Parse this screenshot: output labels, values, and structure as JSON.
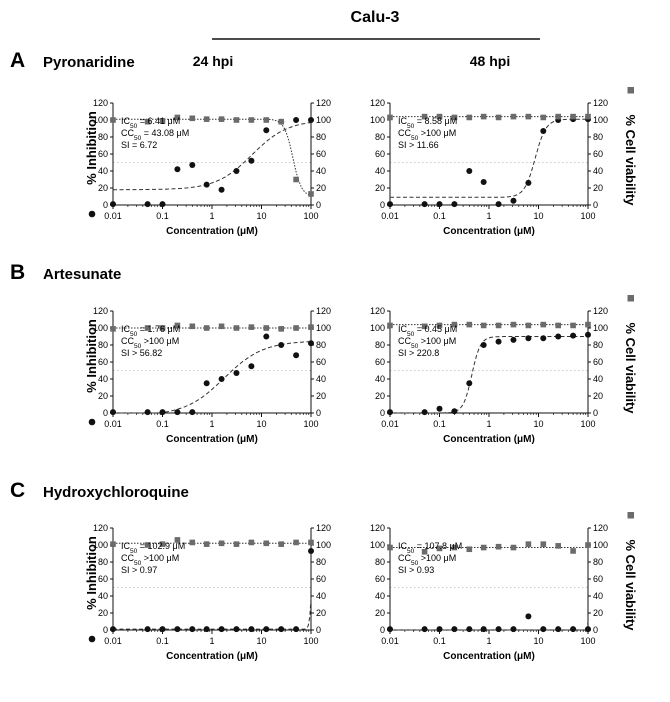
{
  "figure": {
    "title": "Calu-3",
    "columns": [
      "24 hpi",
      "48 hpi"
    ],
    "left_axis_label": "% Inhibition",
    "right_axis_label": "% Cell viability",
    "x_axis_label": "Concentration (μM)",
    "inhibition_marker": "filled-circle",
    "viability_marker": "filled-square-grey",
    "colors": {
      "inhibition": "#111111",
      "viability": "#6b6b6b",
      "fit": "#333333",
      "reference": "#bbbbbb"
    }
  },
  "rows": [
    {
      "letter": "A",
      "drug": "Pyronaridine"
    },
    {
      "letter": "B",
      "drug": "Artesunate"
    },
    {
      "letter": "C",
      "drug": "Hydroxychloroquine"
    }
  ],
  "chart_data": [
    {
      "type": "scatter",
      "panel": "A",
      "drug": "Pyronaridine",
      "time": "24 hpi",
      "x_scale": "log",
      "xlim": [
        0.01,
        100
      ],
      "ylim": [
        0,
        120
      ],
      "y2lim": [
        0,
        120
      ],
      "x_ticks": [
        "0.01",
        "0.1",
        "1",
        "10",
        "100"
      ],
      "y_ticks": [
        "0",
        "20",
        "40",
        "60",
        "80",
        "100",
        "120"
      ],
      "xlabel": "Concentration (μM)",
      "ylabel": "% Inhibition",
      "y2label": "% Cell viability",
      "reference_line": 50,
      "annotations": [
        {
          "prefix": "IC",
          "sub": "50",
          "text": " = 6.41 μM"
        },
        {
          "prefix": "CC",
          "sub": "50",
          "text": " = 43.08 μM"
        },
        {
          "prefix": "SI",
          "sub": "",
          "text": " = 6.72"
        }
      ],
      "series": [
        {
          "kind": "inhibition",
          "x": [
            0.01,
            0.05,
            0.1,
            0.2,
            0.4,
            0.78,
            1.56,
            3.12,
            6.25,
            12.5,
            25,
            50,
            100
          ],
          "y": [
            1,
            1,
            1,
            42,
            47,
            24,
            18,
            40,
            52,
            88,
            98,
            100,
            100
          ]
        },
        {
          "kind": "viability",
          "x": [
            0.01,
            0.05,
            0.1,
            0.2,
            0.4,
            0.78,
            1.56,
            3.12,
            6.25,
            12.5,
            25,
            50,
            100
          ],
          "y": [
            100,
            98,
            99,
            103,
            102,
            101,
            101,
            100,
            100,
            100,
            98,
            30,
            13
          ]
        }
      ],
      "fits": [
        {
          "kind": "inhibition",
          "bottom": 18,
          "top": 100,
          "ec50": 6.41,
          "hill": 1.2
        },
        {
          "kind": "viability",
          "bottom": 10,
          "top": 101,
          "ec50": 43.08,
          "hill": -5
        }
      ]
    },
    {
      "type": "scatter",
      "panel": "A",
      "drug": "Pyronaridine",
      "time": "48 hpi",
      "x_scale": "log",
      "xlim": [
        0.01,
        100
      ],
      "ylim": [
        0,
        120
      ],
      "y2lim": [
        0,
        120
      ],
      "x_ticks": [
        "0.01",
        "0.1",
        "1",
        "10",
        "100"
      ],
      "y_ticks": [
        "0",
        "20",
        "40",
        "60",
        "80",
        "100",
        "120"
      ],
      "xlabel": "Concentration (μM)",
      "ylabel": "% Inhibition",
      "y2label": "% Cell viability",
      "reference_line": 50,
      "annotations": [
        {
          "prefix": "IC",
          "sub": "50",
          "text": " = 8.58 μM"
        },
        {
          "prefix": "CC",
          "sub": "50",
          "text": " >100 μM"
        },
        {
          "prefix": "SI",
          "sub": "",
          "text": " > 11.66"
        }
      ],
      "series": [
        {
          "kind": "inhibition",
          "x": [
            0.01,
            0.05,
            0.1,
            0.2,
            0.4,
            0.78,
            1.56,
            3.12,
            6.25,
            12.5,
            25,
            50,
            100
          ],
          "y": [
            1,
            1,
            1,
            1,
            40,
            27,
            1,
            5,
            26,
            87,
            100,
            101,
            101
          ]
        },
        {
          "kind": "viability",
          "x": [
            0.01,
            0.05,
            0.1,
            0.2,
            0.4,
            0.78,
            1.56,
            3.12,
            6.25,
            12.5,
            25,
            50,
            100
          ],
          "y": [
            103,
            104,
            104,
            103,
            103,
            104,
            103,
            104,
            104,
            103,
            104,
            104,
            104
          ]
        }
      ],
      "fits": [
        {
          "kind": "inhibition",
          "bottom": 9,
          "top": 101,
          "ec50": 8.58,
          "hill": 4
        },
        {
          "kind": "viability",
          "bottom": 104,
          "top": 104,
          "ec50": 50,
          "hill": 1
        }
      ]
    },
    {
      "type": "scatter",
      "panel": "B",
      "drug": "Artesunate",
      "time": "24 hpi",
      "x_scale": "log",
      "xlim": [
        0.01,
        100
      ],
      "ylim": [
        0,
        120
      ],
      "y2lim": [
        0,
        120
      ],
      "x_ticks": [
        "0.01",
        "0.1",
        "1",
        "10",
        "100"
      ],
      "y_ticks": [
        "0",
        "20",
        "40",
        "60",
        "80",
        "100",
        "120"
      ],
      "xlabel": "Concentration (μM)",
      "ylabel": "% Inhibition",
      "y2label": "% Cell viability",
      "reference_line": 50,
      "annotations": [
        {
          "prefix": "IC",
          "sub": "50",
          "text": " = 1.76 μM"
        },
        {
          "prefix": "CC",
          "sub": "50",
          "text": " >100 μM"
        },
        {
          "prefix": "SI",
          "sub": "",
          "text": " > 56.82"
        }
      ],
      "series": [
        {
          "kind": "inhibition",
          "x": [
            0.01,
            0.05,
            0.1,
            0.2,
            0.4,
            0.78,
            1.56,
            3.12,
            6.25,
            12.5,
            25,
            50,
            100
          ],
          "y": [
            1,
            1,
            1,
            1,
            1,
            35,
            40,
            47,
            55,
            90,
            80,
            68,
            82
          ]
        },
        {
          "kind": "viability",
          "x": [
            0.01,
            0.05,
            0.1,
            0.2,
            0.4,
            0.78,
            1.56,
            3.12,
            6.25,
            12.5,
            25,
            50,
            100
          ],
          "y": [
            99,
            100,
            100,
            103,
            102,
            100,
            102,
            100,
            101,
            100,
            99,
            100,
            101
          ]
        }
      ],
      "fits": [
        {
          "kind": "inhibition",
          "bottom": -3,
          "top": 85,
          "ec50": 1.76,
          "hill": 1.1
        },
        {
          "kind": "viability",
          "bottom": 100,
          "top": 100,
          "ec50": 50,
          "hill": 1
        }
      ]
    },
    {
      "type": "scatter",
      "panel": "B",
      "drug": "Artesunate",
      "time": "48 hpi",
      "x_scale": "log",
      "xlim": [
        0.01,
        100
      ],
      "ylim": [
        0,
        120
      ],
      "y2lim": [
        0,
        120
      ],
      "x_ticks": [
        "0.01",
        "0.1",
        "1",
        "10",
        "100"
      ],
      "y_ticks": [
        "0",
        "20",
        "40",
        "60",
        "80",
        "100",
        "120"
      ],
      "xlabel": "Concentration (μM)",
      "ylabel": "% Inhibition",
      "y2label": "% Cell viability",
      "reference_line": 50,
      "annotations": [
        {
          "prefix": "IC",
          "sub": "50",
          "text": " = 0.45 μM"
        },
        {
          "prefix": "CC",
          "sub": "50",
          "text": " >100 μM"
        },
        {
          "prefix": "SI",
          "sub": "",
          "text": " > 220.8"
        }
      ],
      "series": [
        {
          "kind": "inhibition",
          "x": [
            0.01,
            0.05,
            0.1,
            0.2,
            0.4,
            0.78,
            1.56,
            3.12,
            6.25,
            12.5,
            25,
            50,
            100
          ],
          "y": [
            1,
            1,
            5,
            2,
            35,
            80,
            84,
            86,
            88,
            88,
            90,
            91,
            92
          ]
        },
        {
          "kind": "viability",
          "x": [
            0.01,
            0.05,
            0.1,
            0.2,
            0.4,
            0.78,
            1.56,
            3.12,
            6.25,
            12.5,
            25,
            50,
            100
          ],
          "y": [
            103,
            102,
            103,
            104,
            104,
            103,
            103,
            104,
            103,
            104,
            103,
            103,
            104
          ]
        }
      ],
      "fits": [
        {
          "kind": "inhibition",
          "bottom": 0,
          "top": 90,
          "ec50": 0.45,
          "hill": 5
        },
        {
          "kind": "viability",
          "bottom": 104,
          "top": 104,
          "ec50": 50,
          "hill": 1
        }
      ]
    },
    {
      "type": "scatter",
      "panel": "C",
      "drug": "Hydroxychloroquine",
      "time": "24 hpi",
      "x_scale": "log",
      "xlim": [
        0.01,
        100
      ],
      "ylim": [
        0,
        120
      ],
      "y2lim": [
        0,
        120
      ],
      "x_ticks": [
        "0.01",
        "0.1",
        "1",
        "10",
        "100"
      ],
      "y_ticks": [
        "0",
        "20",
        "40",
        "60",
        "80",
        "100",
        "120"
      ],
      "xlabel": "Concentration (μM)",
      "ylabel": "% Inhibition",
      "y2label": "% Cell viability",
      "reference_line": 50,
      "annotations": [
        {
          "prefix": "IC",
          "sub": "50",
          "text": " = 102.9 μM"
        },
        {
          "prefix": "CC",
          "sub": "50",
          "text": " >100 μM"
        },
        {
          "prefix": "SI",
          "sub": "",
          "text": " > 0.97"
        }
      ],
      "series": [
        {
          "kind": "inhibition",
          "x": [
            0.01,
            0.05,
            0.1,
            0.2,
            0.4,
            0.78,
            1.56,
            3.12,
            6.25,
            12.5,
            25,
            50,
            100
          ],
          "y": [
            1,
            1,
            1,
            1,
            1,
            1,
            1,
            1,
            1,
            1,
            1,
            1,
            93
          ]
        },
        {
          "kind": "viability",
          "x": [
            0.01,
            0.05,
            0.1,
            0.2,
            0.4,
            0.78,
            1.56,
            3.12,
            6.25,
            12.5,
            25,
            50,
            100
          ],
          "y": [
            101,
            100,
            101,
            106,
            103,
            101,
            102,
            101,
            103,
            102,
            101,
            103,
            103
          ]
        }
      ],
      "fits": [
        {
          "kind": "inhibition",
          "bottom": 1,
          "top": 100,
          "ec50": 102.9,
          "hill": 20
        },
        {
          "kind": "viability",
          "bottom": 102,
          "top": 102,
          "ec50": 50,
          "hill": 1
        }
      ]
    },
    {
      "type": "scatter",
      "panel": "C",
      "drug": "Hydroxychloroquine",
      "time": "48 hpi",
      "x_scale": "log",
      "xlim": [
        0.01,
        100
      ],
      "ylim": [
        0,
        120
      ],
      "y2lim": [
        0,
        120
      ],
      "x_ticks": [
        "0.01",
        "0.1",
        "1",
        "10",
        "100"
      ],
      "y_ticks": [
        "0",
        "20",
        "40",
        "60",
        "80",
        "100",
        "120"
      ],
      "xlabel": "Concentration (μM)",
      "ylabel": "% Inhibition",
      "y2label": "% Cell viability",
      "reference_line": 50,
      "annotations": [
        {
          "prefix": "IC",
          "sub": "50",
          "text": " = 107.8 μM"
        },
        {
          "prefix": "CC",
          "sub": "50",
          "text": " >100 μM"
        },
        {
          "prefix": "SI",
          "sub": "",
          "text": " > 0.93"
        }
      ],
      "series": [
        {
          "kind": "inhibition",
          "x": [
            0.01,
            0.05,
            0.1,
            0.2,
            0.4,
            0.78,
            1.56,
            3.12,
            6.25,
            12.5,
            25,
            50,
            100
          ],
          "y": [
            1,
            1,
            1,
            1,
            1,
            1,
            1,
            1,
            16,
            1,
            1,
            1,
            1
          ]
        },
        {
          "kind": "viability",
          "x": [
            0.01,
            0.05,
            0.1,
            0.2,
            0.4,
            0.78,
            1.56,
            3.12,
            6.25,
            12.5,
            25,
            50,
            100
          ],
          "y": [
            97,
            92,
            96,
            97,
            95,
            97,
            98,
            97,
            101,
            101,
            99,
            93,
            100
          ]
        }
      ],
      "fits": [
        {
          "kind": "inhibition",
          "bottom": 0,
          "top": 100,
          "ec50": 107.8,
          "hill": 30
        },
        {
          "kind": "viability",
          "bottom": 97,
          "top": 97,
          "ec50": 50,
          "hill": 1
        }
      ]
    }
  ]
}
